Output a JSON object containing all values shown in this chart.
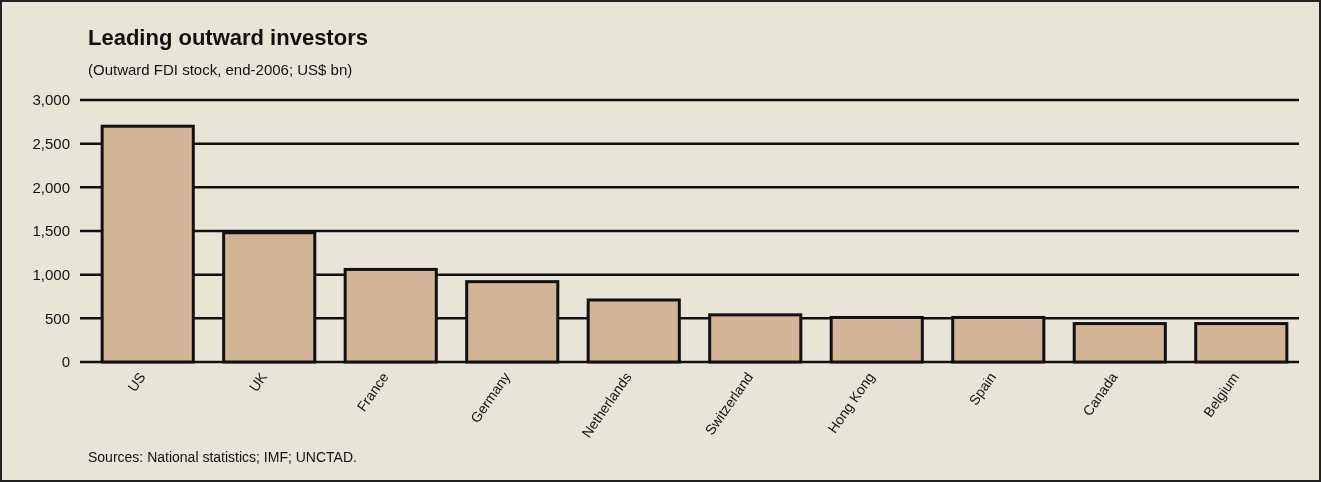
{
  "chart_data": {
    "type": "bar",
    "title": "Leading outward investors",
    "subtitle": "(Outward FDI stock, end-2006; US$ bn)",
    "categories": [
      "US",
      "UK",
      "France",
      "Germany",
      "Netherlands",
      "Switzerland",
      "Hong Kong",
      "Spain",
      "Canada",
      "Belgium"
    ],
    "values": [
      2700,
      1480,
      1060,
      920,
      710,
      540,
      510,
      510,
      440,
      440
    ],
    "color": "#d2b497",
    "ylim": [
      0,
      3000
    ],
    "yticks": [
      0,
      {
        "value": 500,
        "label": "500"
      },
      {
        "value": 1000,
        "label": "1,000"
      },
      {
        "value": 1500,
        "label": "1,500"
      },
      {
        "value": 2000,
        "label": "2,000"
      },
      {
        "value": 2500,
        "label": "2,500"
      },
      {
        "value": 3000,
        "label": "3,000"
      }
    ],
    "grid": "y",
    "annotations": [
      "Sources: National statistics; IMF; UNCTAD."
    ]
  }
}
